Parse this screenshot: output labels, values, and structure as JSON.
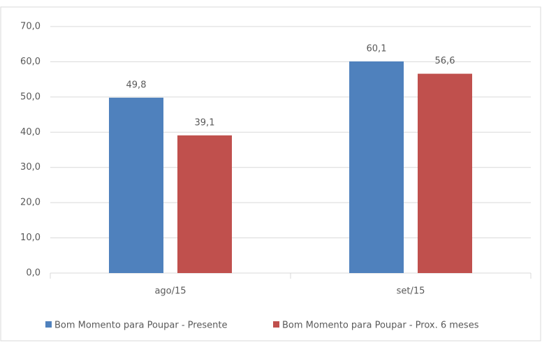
{
  "chart_data": {
    "type": "bar",
    "categories": [
      "ago/15",
      "set/15"
    ],
    "series": [
      {
        "name": "Bom Momento para Poupar - Presente",
        "color": "#4f81bd",
        "values": [
          49.8,
          60.1
        ],
        "value_labels": [
          "49,8",
          "60,1"
        ]
      },
      {
        "name": "Bom Momento para Poupar - Prox. 6 meses",
        "color": "#c0504d",
        "values": [
          39.1,
          56.6
        ],
        "value_labels": [
          "39,1",
          "56,6"
        ]
      }
    ],
    "ylim": [
      0,
      70
    ],
    "yticks": [
      {
        "value": 0,
        "label": "0,0"
      },
      {
        "value": 10,
        "label": "10,0"
      },
      {
        "value": 20,
        "label": "20,0"
      },
      {
        "value": 30,
        "label": "30,0"
      },
      {
        "value": 40,
        "label": "40,0"
      },
      {
        "value": 50,
        "label": "50,0"
      },
      {
        "value": 60,
        "label": "60,0"
      },
      {
        "value": 70,
        "label": "70,0"
      }
    ],
    "grid": true,
    "legend": "bottom"
  }
}
